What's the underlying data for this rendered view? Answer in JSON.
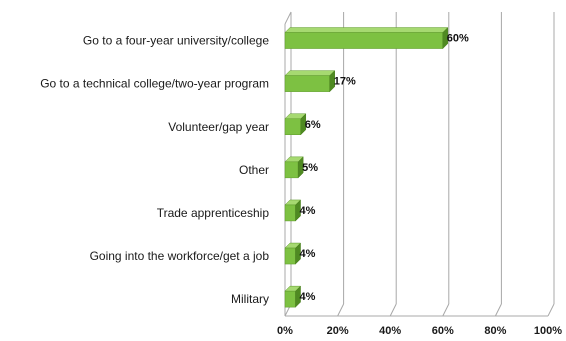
{
  "chart_data": {
    "type": "bar",
    "orientation": "horizontal",
    "categories": [
      "Go to a four-year university/college",
      "Go to a technical college/two-year program",
      "Volunteer/gap year",
      "Other",
      "Trade apprenticeship",
      "Going into the workforce/get a job",
      "Military"
    ],
    "values": [
      60,
      17,
      6,
      5,
      4,
      4,
      4
    ],
    "data_labels": [
      "60%",
      "17%",
      "6%",
      "5%",
      "4%",
      "4%",
      "4%"
    ],
    "x_ticks": [
      "0%",
      "20%",
      "40%",
      "60%",
      "80%",
      "100%"
    ],
    "xlim": [
      0,
      100
    ],
    "grid": true,
    "style": "3d",
    "colors": {
      "bar_front": "#7dc142",
      "bar_top": "#a6d971",
      "bar_side": "#4f8a22",
      "grid": "#a8a8a8"
    }
  }
}
